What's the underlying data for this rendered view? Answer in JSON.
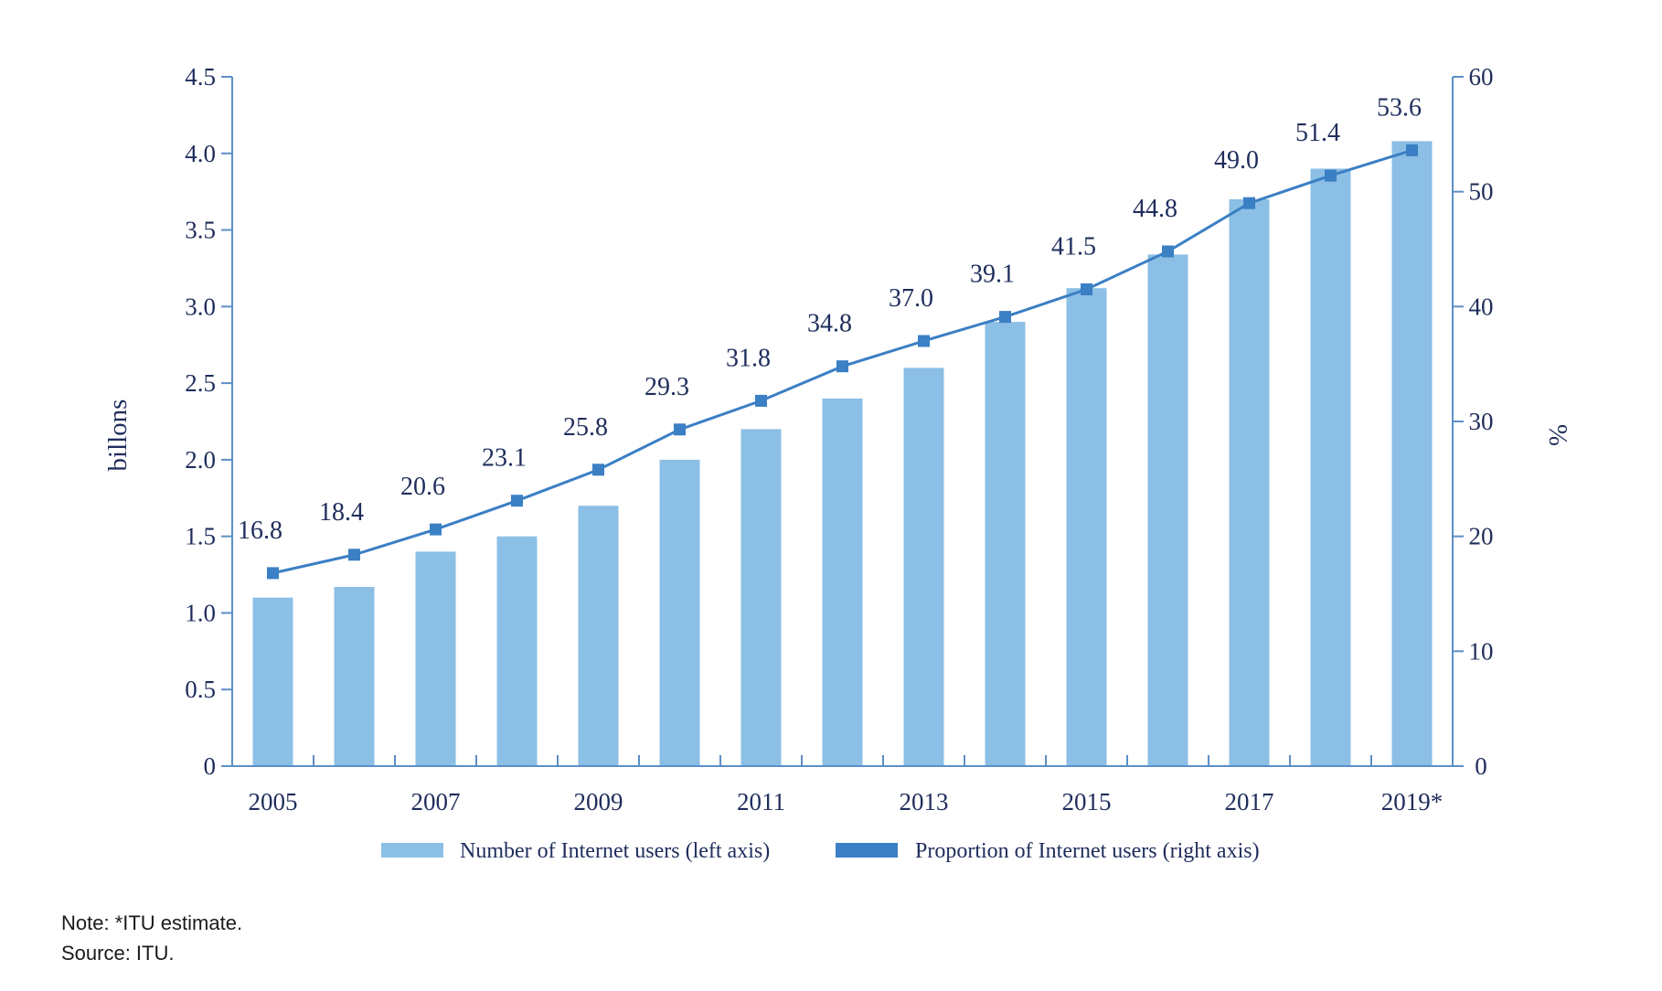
{
  "chart_data": {
    "type": "bar+line",
    "categories": [
      "2005",
      "2006",
      "2007",
      "2008",
      "2009",
      "2010",
      "2011",
      "2012",
      "2013",
      "2014",
      "2015",
      "2016",
      "2017",
      "2018",
      "2019*"
    ],
    "x_tick_labels": [
      "2005",
      "",
      "2007",
      "",
      "2009",
      "",
      "2011",
      "",
      "2013",
      "",
      "2015",
      "",
      "2017",
      "",
      "2019*"
    ],
    "series": [
      {
        "name": "Number of Internet users (left axis)",
        "type": "bar",
        "axis": "left",
        "color": "#8bbfe6",
        "values": [
          1.1,
          1.17,
          1.4,
          1.5,
          1.7,
          2.0,
          2.2,
          2.4,
          2.6,
          2.9,
          3.12,
          3.34,
          3.7,
          3.9,
          4.08
        ]
      },
      {
        "name": "Proportion of Internet users (right axis)",
        "type": "line",
        "axis": "right",
        "color": "#3b7fc4",
        "values": [
          16.8,
          18.4,
          20.6,
          23.1,
          25.8,
          29.3,
          31.8,
          34.8,
          37.0,
          39.1,
          41.5,
          44.8,
          49.0,
          51.4,
          53.6
        ],
        "data_labels": [
          "16.8",
          "18.4",
          "20.6",
          "23.1",
          "25.8",
          "29.3",
          "31.8",
          "34.8",
          "37.0",
          "39.1",
          "41.5",
          "44.8",
          "49.0",
          "51.4",
          "53.6"
        ]
      }
    ],
    "left_axis": {
      "label": "billons",
      "range": [
        0,
        4.5
      ],
      "ticks": [
        0,
        0.5,
        1.0,
        1.5,
        2.0,
        2.5,
        3.0,
        3.5,
        4.0,
        4.5
      ],
      "tick_labels": [
        "0",
        "0.5",
        "1.0",
        "1.5",
        "2.0",
        "2.5",
        "3.0",
        "3.5",
        "4.0",
        "4.5"
      ]
    },
    "right_axis": {
      "label": "%",
      "range": [
        0,
        60
      ],
      "ticks": [
        0,
        10,
        20,
        30,
        40,
        50,
        60
      ],
      "tick_labels": [
        "0",
        "10",
        "20",
        "30",
        "40",
        "50",
        "60"
      ]
    },
    "grid": false,
    "legend_position": "bottom",
    "axis_color": "#5b8fc7",
    "text_color": "#1f2d5c"
  },
  "notes": {
    "note": "Note: *ITU estimate.",
    "source": "Source: ITU."
  }
}
